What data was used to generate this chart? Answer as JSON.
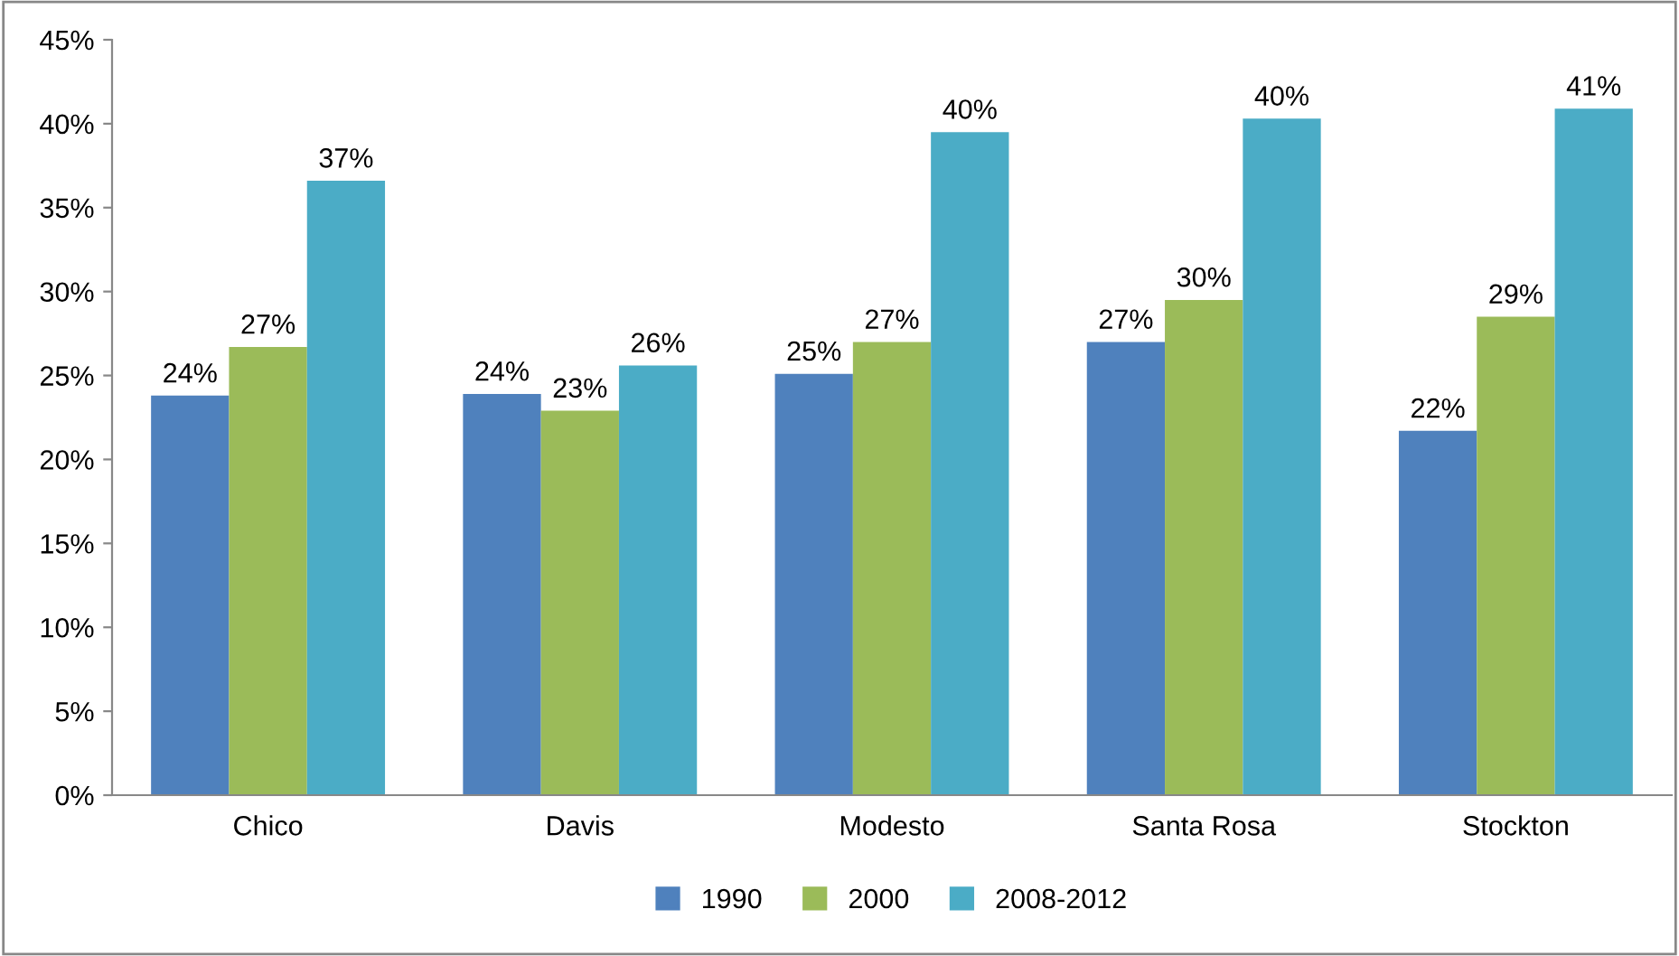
{
  "chart_data": {
    "type": "bar",
    "categories": [
      "Chico",
      "Davis",
      "Modesto",
      "Santa Rosa",
      "Stockton"
    ],
    "series": [
      {
        "name": "1990",
        "color": "#4f81bd",
        "values": [
          23.8,
          23.9,
          25.1,
          27.0,
          21.7
        ],
        "value_labels": [
          "24%",
          "24%",
          "25%",
          "27%",
          "22%"
        ]
      },
      {
        "name": "2000",
        "color": "#9bbb59",
        "values": [
          26.7,
          22.9,
          27.0,
          29.5,
          28.5
        ],
        "value_labels": [
          "27%",
          "23%",
          "27%",
          "30%",
          "29%"
        ]
      },
      {
        "name": "2008-2012",
        "color": "#4bacc6",
        "values": [
          36.6,
          25.6,
          39.5,
          40.3,
          40.9
        ],
        "value_labels": [
          "37%",
          "26%",
          "40%",
          "40%",
          "41%"
        ]
      }
    ],
    "ylim": [
      0,
      45
    ],
    "yticks": [
      {
        "value": 0,
        "label": "0%"
      },
      {
        "value": 5,
        "label": "5%"
      },
      {
        "value": 10,
        "label": "10%"
      },
      {
        "value": 15,
        "label": "15%"
      },
      {
        "value": 20,
        "label": "20%"
      },
      {
        "value": 25,
        "label": "25%"
      },
      {
        "value": 30,
        "label": "30%"
      },
      {
        "value": 35,
        "label": "35%"
      },
      {
        "value": 40,
        "label": "40%"
      },
      {
        "value": 45,
        "label": "45%"
      }
    ],
    "grid": false,
    "legend": "bottom"
  }
}
